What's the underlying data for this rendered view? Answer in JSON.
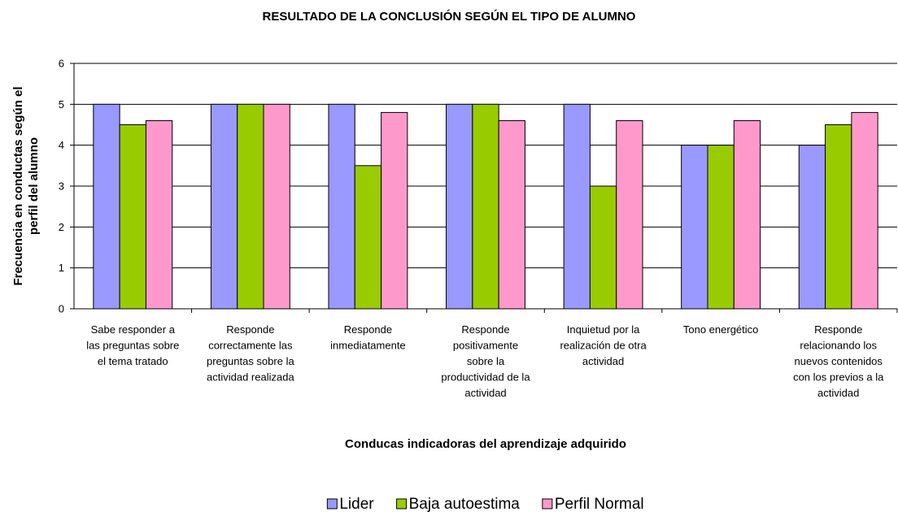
{
  "chart_data": {
    "type": "bar",
    "title": "RESULTADO DE LA CONCLUSIÓN SEGÚN EL TIPO DE ALUMNO",
    "xlabel": "Conducas indicadoras del aprendizaje adquirido",
    "ylabel": "Frecuencia en conductas según el perfil del alumno",
    "categories": [
      "Sabe responder a las preguntas sobre el tema tratado",
      "Responde correctamente las preguntas sobre la actividad realizada",
      "Responde inmediatamente",
      "Responde positivamente sobre la productividad de la actividad",
      "Inquietud por la realización de otra actividad",
      "Tono energético",
      "Responde relacionando los nuevos contenidos con los previos a la actividad"
    ],
    "series": [
      {
        "name": "Lider",
        "color": "#9999ff",
        "values": [
          5,
          5,
          5,
          5,
          5,
          4,
          4
        ]
      },
      {
        "name": "Baja autoestima",
        "color": "#99cc00",
        "values": [
          4.5,
          5,
          3.5,
          5,
          3,
          4,
          4.5
        ]
      },
      {
        "name": "Perfil Normal",
        "color": "#ff99cc",
        "values": [
          4.6,
          5,
          4.8,
          4.6,
          4.6,
          4.6,
          4.8
        ]
      }
    ],
    "ylim": [
      0,
      6
    ],
    "yticks": [
      0,
      1,
      2,
      3,
      4,
      5,
      6
    ],
    "grid": true,
    "legend": "bottom"
  }
}
